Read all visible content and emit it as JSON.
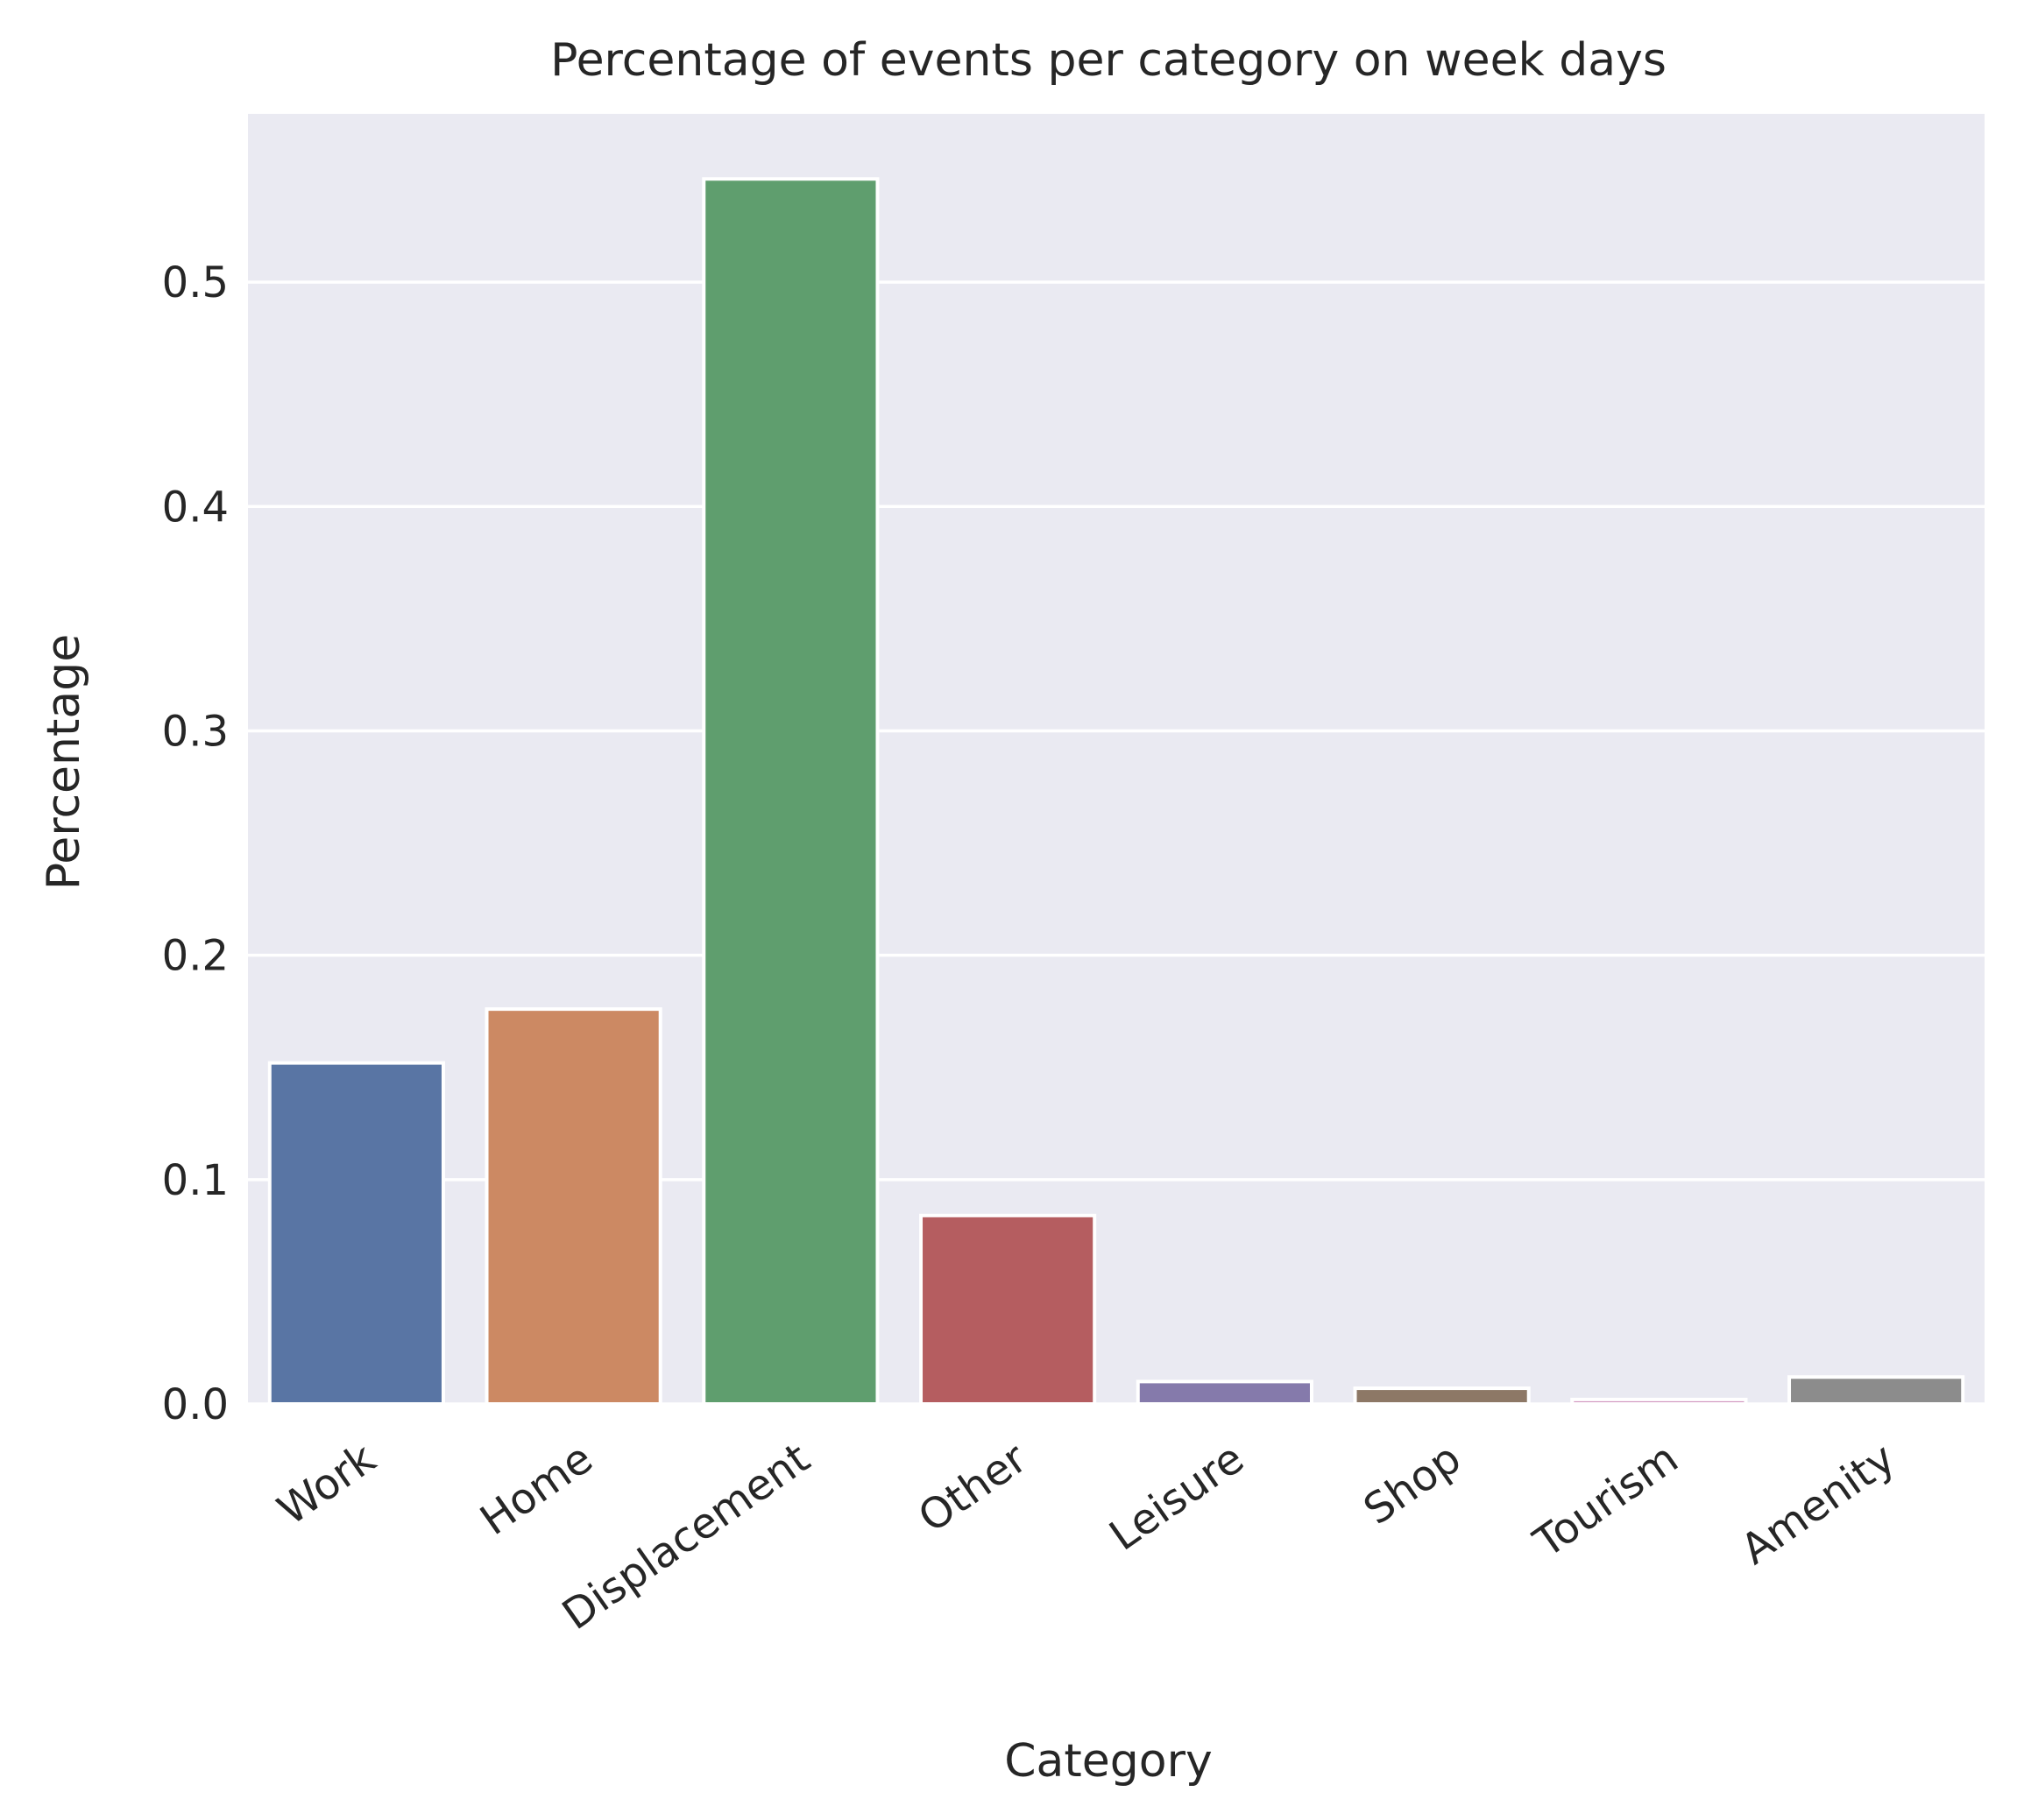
{
  "chart_data": {
    "type": "bar",
    "title": "Percentage of events per category on week days",
    "xlabel": "Category",
    "ylabel": "Percentage",
    "categories": [
      "Work",
      "Home",
      "Displacement",
      "Other",
      "Leisure",
      "Shop",
      "Tourism",
      "Amenity"
    ],
    "values": [
      0.152,
      0.176,
      0.546,
      0.084,
      0.01,
      0.007,
      0.002,
      0.012
    ],
    "colors": [
      "#5975a4",
      "#cc8963",
      "#5f9e6e",
      "#b55d60",
      "#857aab",
      "#8d7866",
      "#d095bf",
      "#8c8c8c"
    ],
    "ylim": [
      0,
      0.575
    ],
    "yticks": [
      0.0,
      0.1,
      0.2,
      0.3,
      0.4,
      0.5
    ],
    "ytick_labels": [
      "0.0",
      "0.1",
      "0.2",
      "0.3",
      "0.4",
      "0.5"
    ],
    "grid": true,
    "background_color": "#eaeaf2",
    "grid_color": "#ffffff"
  }
}
